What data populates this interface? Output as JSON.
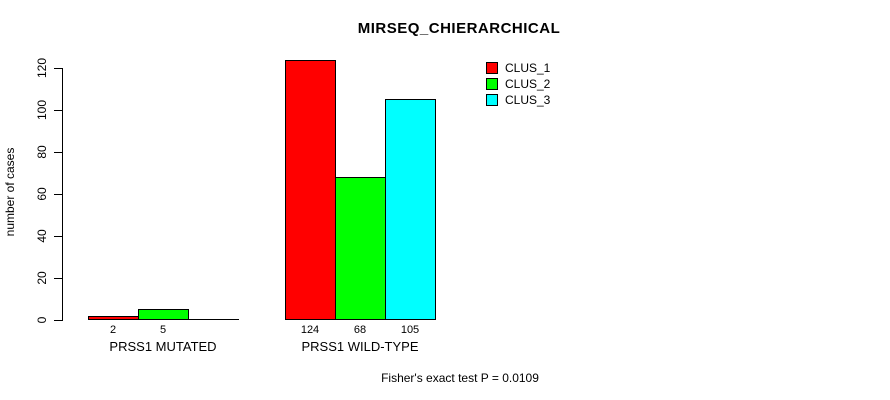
{
  "chart_data": {
    "type": "bar",
    "title": "MIRSEQ_CHIERARCHICAL",
    "ylabel": "number of cases",
    "xlabel": "",
    "categories": [
      "PRSS1 MUTATED",
      "PRSS1 WILD-TYPE"
    ],
    "series": [
      {
        "name": "CLUS_1",
        "color": "#ff0000",
        "values": [
          2,
          124
        ]
      },
      {
        "name": "CLUS_2",
        "color": "#00ff00",
        "values": [
          5,
          68
        ]
      },
      {
        "name": "CLUS_3",
        "color": "#00ffff",
        "values": [
          0,
          105
        ]
      }
    ],
    "bar_value_labels": [
      [
        "2",
        "5",
        ""
      ],
      [
        "124",
        "68",
        "105"
      ]
    ],
    "yticks": [
      0,
      20,
      40,
      60,
      80,
      100,
      120
    ],
    "ylim": [
      0,
      124
    ],
    "grid": false,
    "legend_position": "top-right",
    "annotation": "Fisher's exact test P = 0.0109",
    "colors": {
      "background": "#ffffff",
      "text": "#000000",
      "axis": "#000000"
    }
  }
}
